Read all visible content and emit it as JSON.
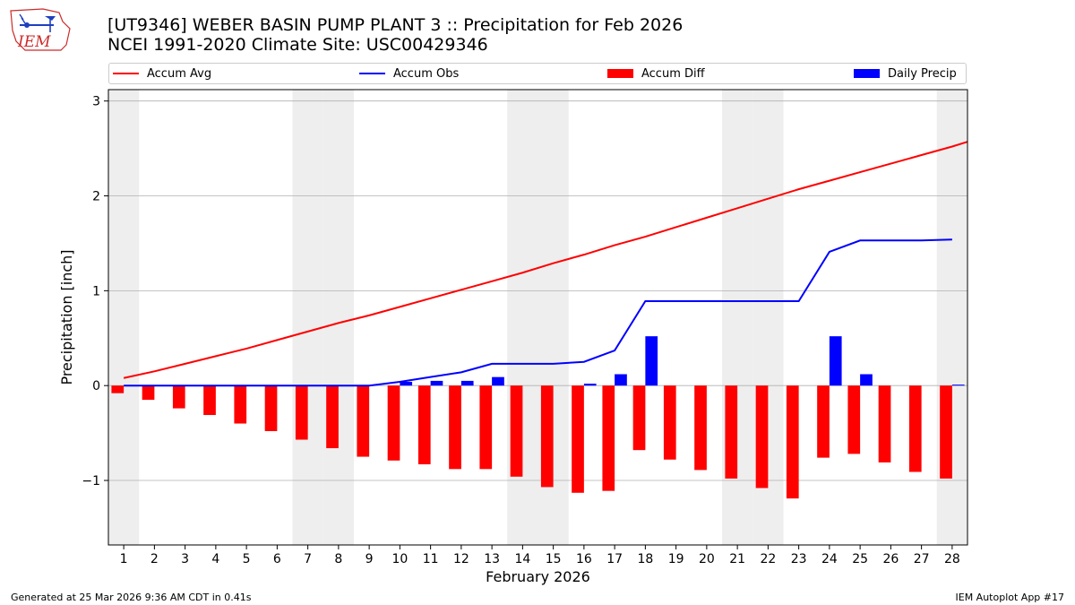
{
  "header": {
    "title_line1": "[UT9346] WEBER BASIN PUMP PLANT 3 :: Precipitation for Feb 2026",
    "title_line2": "NCEI 1991-2020 Climate Site: USC00429346",
    "logo_text": "IEM"
  },
  "legend": {
    "accum_avg": "Accum Avg",
    "accum_obs": "Accum Obs",
    "accum_diff": "Accum Diff",
    "daily_precip": "Daily Precip",
    "placement": "top, above plot"
  },
  "footer": {
    "generated": "Generated at 25 Mar 2026 9:36 AM CDT in 0.41s",
    "app": "IEM Autoplot App #17"
  },
  "colors": {
    "accum_avg": "#ff0000",
    "accum_obs": "#0000ff",
    "accum_diff": "#ff0000",
    "daily_precip": "#0000ff",
    "weekend_shade": "#eeeeee",
    "grid": "#b0b0b0"
  },
  "chart_data": {
    "type": "bar",
    "xlabel": "February 2026",
    "ylabel": "Precipitation [inch]",
    "xlim": [
      0.5,
      28.5
    ],
    "ylim": [
      -1.68,
      3.12
    ],
    "x": [
      1,
      2,
      3,
      4,
      5,
      6,
      7,
      8,
      9,
      10,
      11,
      12,
      13,
      14,
      15,
      16,
      17,
      18,
      19,
      20,
      21,
      22,
      23,
      24,
      25,
      26,
      27,
      28
    ],
    "x_tick_labels": [
      "1",
      "2",
      "3",
      "4",
      "5",
      "6",
      "7",
      "8",
      "9",
      "10",
      "11",
      "12",
      "13",
      "14",
      "15",
      "16",
      "17",
      "18",
      "19",
      "20",
      "21",
      "22",
      "23",
      "24",
      "25",
      "26",
      "27",
      "28"
    ],
    "y_ticks": [
      -1,
      0,
      1,
      2,
      3
    ],
    "y_tick_labels": [
      "−1",
      "0",
      "1",
      "2",
      "3"
    ],
    "grid": "horizontal",
    "weekend_days": [
      1,
      7,
      8,
      14,
      15,
      21,
      22,
      28
    ],
    "series": [
      {
        "name": "Accum Avg",
        "kind": "line",
        "values": [
          0.08,
          0.15,
          0.23,
          0.31,
          0.39,
          0.48,
          0.57,
          0.66,
          0.74,
          0.83,
          0.92,
          1.01,
          1.1,
          1.19,
          1.29,
          1.38,
          1.48,
          1.57,
          1.67,
          1.77,
          1.87,
          1.97,
          2.07,
          2.16,
          2.25,
          2.34,
          2.43,
          2.52
        ],
        "end_value": 2.57
      },
      {
        "name": "Accum Obs",
        "kind": "line",
        "values": [
          0.0,
          0.0,
          0.0,
          0.0,
          0.0,
          0.0,
          0.0,
          0.0,
          0.0,
          0.04,
          0.09,
          0.14,
          0.23,
          0.23,
          0.23,
          0.25,
          0.37,
          0.89,
          0.89,
          0.89,
          0.89,
          0.89,
          0.89,
          1.41,
          1.53,
          1.53,
          1.53,
          1.54
        ]
      },
      {
        "name": "Accum Diff",
        "kind": "bar",
        "values": [
          -0.08,
          -0.15,
          -0.24,
          -0.31,
          -0.4,
          -0.48,
          -0.57,
          -0.66,
          -0.75,
          -0.79,
          -0.83,
          -0.88,
          -0.88,
          -0.96,
          -1.07,
          -1.13,
          -1.11,
          -0.68,
          -0.78,
          -0.89,
          -0.98,
          -1.08,
          -1.19,
          -0.76,
          -0.72,
          -0.81,
          -0.91,
          -0.98
        ]
      },
      {
        "name": "Daily Precip",
        "kind": "bar",
        "values": [
          0,
          0,
          0,
          0,
          0,
          0,
          0,
          0,
          0,
          0.04,
          0.05,
          0.05,
          0.09,
          0,
          0,
          0.02,
          0.12,
          0.52,
          0,
          0,
          0,
          0,
          0,
          0.52,
          0.12,
          0,
          0,
          0.01
        ]
      }
    ]
  }
}
